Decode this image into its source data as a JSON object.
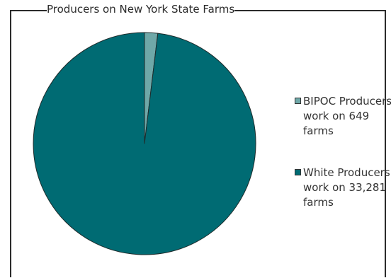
{
  "chart_data": {
    "type": "pie",
    "title": "Producers on New York State Farms",
    "series": [
      {
        "name": "BIPOC Producers work on 649 farms",
        "value": 649,
        "color": "#6fa8a8"
      },
      {
        "name": "White Producers work on 33,281 farms",
        "value": 33281,
        "color": "#006b73"
      }
    ],
    "legend_position": "right",
    "start_angle_deg": 0,
    "direction": "clockwise"
  },
  "legend": [
    {
      "label": "BIPOC Producers\nwork on 649\nfarms"
    },
    {
      "label": "White Producers\nwork on 33,281\nfarms"
    }
  ]
}
